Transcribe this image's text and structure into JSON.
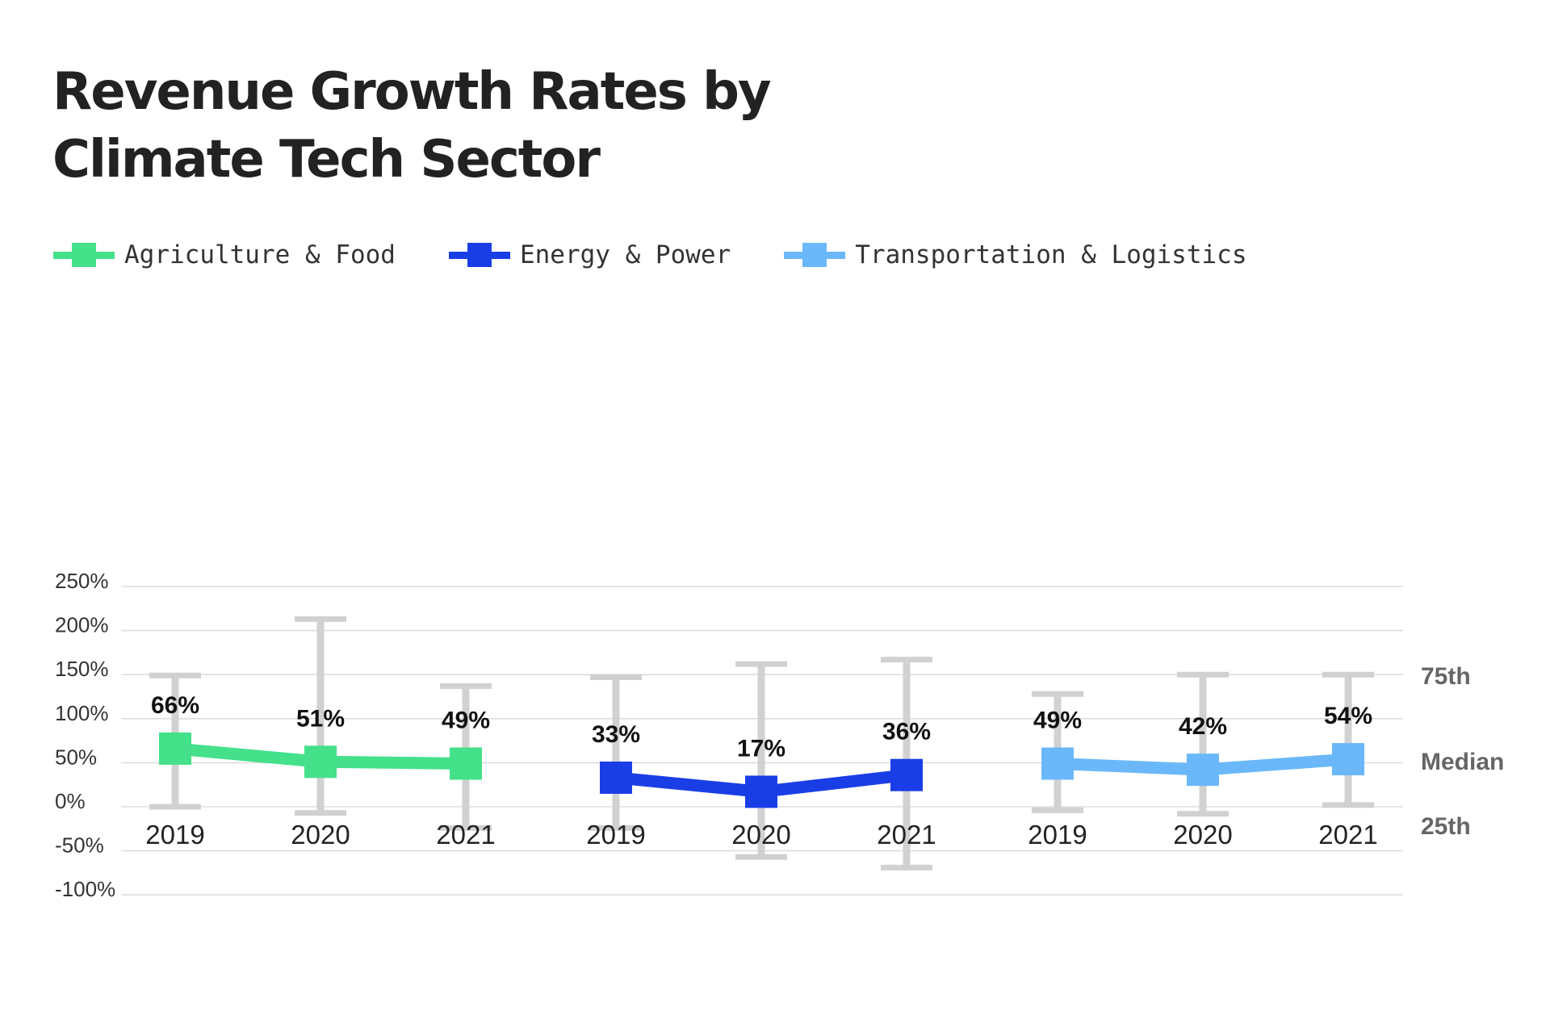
{
  "chart_data": {
    "type": "line",
    "title_lines": [
      "Revenue Growth Rates by",
      "Climate Tech Sector"
    ],
    "legend_position": "top-left",
    "grid": true,
    "ylim": [
      -100,
      250
    ],
    "y_ticks": [
      250,
      200,
      150,
      100,
      50,
      0,
      -50,
      -100
    ],
    "y_tick_labels": [
      "250%",
      "200%",
      "150%",
      "100%",
      "50%",
      "0%",
      "-50%",
      "-100%"
    ],
    "categories": [
      "2019",
      "2020",
      "2021"
    ],
    "series": [
      {
        "name": "Agriculture & Food",
        "color": "#44E08A",
        "median": [
          66,
          51,
          49
        ],
        "median_labels": [
          "66%",
          "51%",
          "49%"
        ],
        "p75": [
          149,
          213,
          137
        ],
        "p25": [
          0,
          -7,
          -24
        ]
      },
      {
        "name": "Energy & Power",
        "color": "#1A3EE6",
        "median": [
          33,
          17,
          36
        ],
        "median_labels": [
          "33%",
          "17%",
          "36%"
        ],
        "p75": [
          147,
          162,
          167
        ],
        "p25": [
          -24,
          -57,
          -69
        ]
      },
      {
        "name": "Transportation & Logistics",
        "color": "#6AB8FA",
        "median": [
          49,
          42,
          54
        ],
        "median_labels": [
          "49%",
          "42%",
          "54%"
        ],
        "p75": [
          128,
          150,
          150
        ],
        "p25": [
          -4,
          -8,
          2
        ]
      }
    ],
    "percentile_labels": {
      "p75": {
        "text": "75th",
        "value": 150
      },
      "median": {
        "text": "Median",
        "value": 53
      },
      "p25": {
        "text": "25th",
        "value": -20
      }
    },
    "whisker_color": "#D1D1D1",
    "grid_color": "#DDDDDD"
  }
}
